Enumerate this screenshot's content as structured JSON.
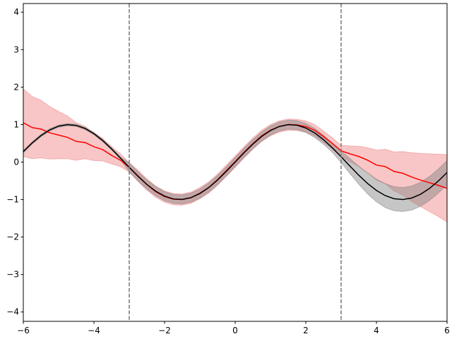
{
  "chart_data": {
    "type": "line",
    "x": [
      -6,
      -5.75,
      -5.5,
      -5.25,
      -5,
      -4.75,
      -4.5,
      -4.25,
      -4,
      -3.75,
      -3.5,
      -3.25,
      -3,
      -2.75,
      -2.5,
      -2.25,
      -2,
      -1.75,
      -1.5,
      -1.25,
      -1,
      -0.75,
      -0.5,
      -0.25,
      0,
      0.25,
      0.5,
      0.75,
      1,
      1.25,
      1.5,
      1.75,
      2,
      2.25,
      2.5,
      2.75,
      3,
      3.25,
      3.5,
      3.75,
      4,
      4.25,
      4.5,
      4.75,
      5,
      5.25,
      5.5,
      5.75,
      6
    ],
    "bands": [
      {
        "color": "#f08080",
        "lower": [
          0.15,
          0.09,
          0.11,
          0.08,
          0.09,
          0.09,
          0.05,
          0.09,
          0.04,
          0.03,
          -0.05,
          -0.12,
          -0.26,
          -0.52,
          -0.75,
          -0.94,
          -1.07,
          -1.14,
          -1.15,
          -1.1,
          -0.98,
          -0.83,
          -0.62,
          -0.38,
          -0.14,
          0.11,
          0.34,
          0.55,
          0.7,
          0.8,
          0.85,
          0.84,
          0.8,
          0.7,
          0.53,
          0.35,
          0.15,
          0.01,
          -0.12,
          -0.28,
          -0.48,
          -0.58,
          -0.77,
          -0.88,
          -1.05,
          -1.19,
          -1.32,
          -1.45,
          -1.6
        ],
        "upper": [
          1.95,
          1.75,
          1.65,
          1.48,
          1.35,
          1.23,
          1.05,
          0.95,
          0.78,
          0.63,
          0.41,
          0.22,
          -0.02,
          -0.22,
          -0.45,
          -0.64,
          -0.77,
          -0.84,
          -0.85,
          -0.8,
          -0.68,
          -0.53,
          -0.32,
          -0.08,
          0.16,
          0.41,
          0.64,
          0.85,
          1.0,
          1.1,
          1.15,
          1.14,
          1.1,
          1.0,
          0.83,
          0.65,
          0.45,
          0.43,
          0.42,
          0.38,
          0.32,
          0.34,
          0.27,
          0.28,
          0.25,
          0.23,
          0.22,
          0.21,
          0.2
        ]
      },
      {
        "color": "#808080",
        "lower": [
          0.249,
          0.479,
          0.676,
          0.829,
          0.929,
          0.969,
          0.948,
          0.865,
          0.727,
          0.542,
          0.321,
          0.078,
          -0.261,
          -0.502,
          -0.718,
          -0.898,
          -1.029,
          -1.104,
          -1.117,
          -1.069,
          -0.961,
          -0.802,
          -0.599,
          -0.367,
          -0.12,
          0.127,
          0.359,
          0.562,
          0.721,
          0.829,
          0.877,
          0.864,
          0.789,
          0.658,
          0.478,
          0.262,
          -0.009,
          -0.308,
          -0.591,
          -0.852,
          -1.057,
          -1.215,
          -1.298,
          -1.319,
          -1.279,
          -1.179,
          -1.026,
          -0.829,
          -0.599
        ],
        "upper": [
          0.309,
          0.539,
          0.736,
          0.889,
          0.989,
          1.029,
          1.008,
          0.925,
          0.787,
          0.602,
          0.381,
          0.138,
          -0.021,
          -0.262,
          -0.478,
          -0.658,
          -0.789,
          -0.864,
          -0.877,
          -0.829,
          -0.721,
          -0.562,
          -0.359,
          -0.127,
          0.12,
          0.367,
          0.599,
          0.802,
          0.961,
          1.069,
          1.117,
          1.104,
          1.029,
          0.898,
          0.718,
          0.502,
          0.291,
          0.092,
          -0.111,
          -0.292,
          -0.457,
          -0.575,
          -0.658,
          -0.679,
          -0.639,
          -0.539,
          -0.386,
          -0.189,
          0.041
        ]
      }
    ],
    "series": [
      {
        "color": "#ff0000",
        "values": [
          1.05,
          0.92,
          0.88,
          0.78,
          0.72,
          0.66,
          0.55,
          0.52,
          0.41,
          0.33,
          0.18,
          0.05,
          -0.14,
          -0.37,
          -0.6,
          -0.79,
          -0.92,
          -0.99,
          -1.0,
          -0.95,
          -0.83,
          -0.68,
          -0.47,
          -0.23,
          0.01,
          0.26,
          0.49,
          0.7,
          0.85,
          0.95,
          1.0,
          0.99,
          0.95,
          0.85,
          0.68,
          0.5,
          0.3,
          0.22,
          0.15,
          0.05,
          -0.08,
          -0.12,
          -0.25,
          -0.3,
          -0.4,
          -0.48,
          -0.55,
          -0.62,
          -0.7
        ]
      },
      {
        "color": "#000000",
        "values": [
          0.279,
          0.509,
          0.706,
          0.859,
          0.959,
          0.999,
          0.978,
          0.895,
          0.757,
          0.572,
          0.351,
          0.108,
          -0.141,
          -0.382,
          -0.598,
          -0.778,
          -0.909,
          -0.984,
          -0.997,
          -0.949,
          -0.841,
          -0.682,
          -0.479,
          -0.247,
          0,
          0.247,
          0.479,
          0.682,
          0.841,
          0.949,
          0.997,
          0.984,
          0.909,
          0.778,
          0.598,
          0.382,
          0.141,
          -0.108,
          -0.351,
          -0.572,
          -0.757,
          -0.895,
          -0.978,
          -0.999,
          -0.959,
          -0.859,
          -0.706,
          -0.509,
          -0.279
        ]
      }
    ],
    "vlines": {
      "color": "#777777",
      "values": [
        -3,
        3
      ]
    },
    "xlim": [
      -6,
      6
    ],
    "ylim": [
      -4.25,
      4.23
    ],
    "xticks": [
      {
        "value": -6,
        "label": "−6"
      },
      {
        "value": -4,
        "label": "−4"
      },
      {
        "value": -2,
        "label": "−2"
      },
      0,
      2,
      4,
      6
    ],
    "yticks": [
      {
        "value": -4,
        "label": "−4"
      },
      {
        "value": -3,
        "label": "−3"
      },
      {
        "value": -2,
        "label": "−2"
      },
      {
        "value": -1,
        "label": "−1"
      },
      0,
      1,
      2,
      3,
      4
    ]
  }
}
